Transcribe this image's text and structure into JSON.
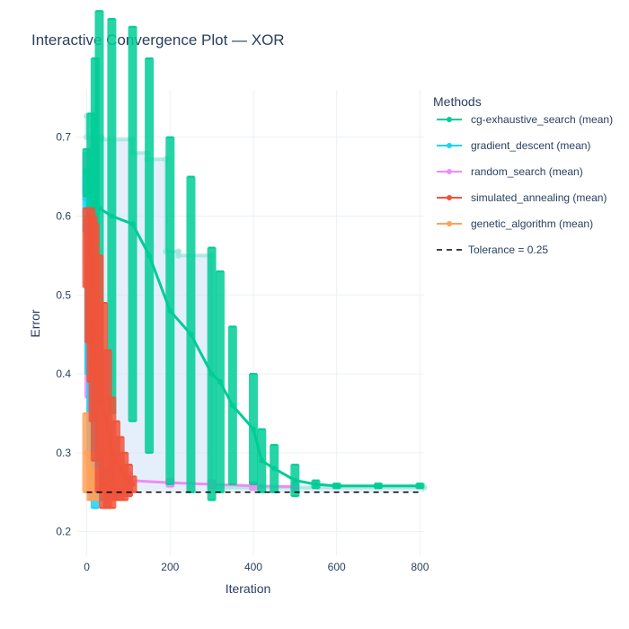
{
  "chart_data": {
    "type": "line",
    "title": "Interactive Convergence Plot — XOR",
    "xlabel": "Iteration",
    "ylabel": "Error",
    "xlim": [
      -25,
      810
    ],
    "ylim": [
      0.17,
      0.76
    ],
    "xticks": [
      0,
      200,
      400,
      600,
      800
    ],
    "yticks": [
      0.2,
      0.3,
      0.4,
      0.5,
      0.6,
      0.7
    ],
    "grid": true,
    "legend_title": "Methods",
    "legend_position": "right",
    "tolerance": {
      "label": "Tolerance = 0.25",
      "value": 0.25,
      "color": "#000000"
    },
    "series": [
      {
        "name": "cg-exhaustive_search (mean)",
        "color": "#00cc96",
        "x": [
          0,
          10,
          20,
          30,
          60,
          110,
          150,
          200,
          250,
          300,
          320,
          350,
          400,
          420,
          450,
          500,
          550,
          600,
          700,
          800
        ],
        "y": [
          0.655,
          0.63,
          0.62,
          0.61,
          0.6,
          0.59,
          0.55,
          0.48,
          0.45,
          0.4,
          0.39,
          0.36,
          0.33,
          0.29,
          0.28,
          0.265,
          0.26,
          0.258,
          0.258,
          0.258
        ],
        "err": [
          0.03,
          0.1,
          0.18,
          0.25,
          0.25,
          0.25,
          0.25,
          0.22,
          0.2,
          0.16,
          0.14,
          0.1,
          0.07,
          0.04,
          0.03,
          0.02,
          0.005,
          0.003,
          0.003,
          0.003
        ]
      },
      {
        "name": "gradient_descent (mean)",
        "color": "#19d3f3",
        "x": [
          0,
          5,
          10,
          15,
          20,
          30,
          40,
          60
        ],
        "y": [
          0.62,
          0.5,
          0.4,
          0.33,
          0.29,
          0.27,
          0.26,
          0.255
        ],
        "err": [
          0.04,
          0.1,
          0.12,
          0.09,
          0.06,
          0.03,
          0.02,
          0.01
        ]
      },
      {
        "name": "random_search (mean)",
        "color": "#ef8cf4",
        "x": [
          0,
          5,
          10,
          20,
          30,
          60,
          100,
          200,
          300,
          400,
          500
        ],
        "y": [
          0.65,
          0.45,
          0.35,
          0.3,
          0.28,
          0.27,
          0.265,
          0.262,
          0.26,
          0.258,
          0.257
        ],
        "err": [
          0.03,
          0.08,
          0.07,
          0.05,
          0.03,
          0.02,
          0.01,
          0.005,
          0.005,
          0.005,
          0.005
        ]
      },
      {
        "name": "simulated_annealing (mean)",
        "color": "#ef553b",
        "x": [
          0,
          5,
          10,
          15,
          20,
          30,
          40,
          50,
          60,
          70,
          80,
          90,
          100,
          110
        ],
        "y": [
          0.56,
          0.52,
          0.5,
          0.47,
          0.44,
          0.4,
          0.36,
          0.33,
          0.3,
          0.29,
          0.28,
          0.27,
          0.265,
          0.26
        ],
        "err": [
          0.05,
          0.08,
          0.11,
          0.13,
          0.15,
          0.15,
          0.13,
          0.1,
          0.07,
          0.05,
          0.04,
          0.03,
          0.02,
          0.01
        ]
      },
      {
        "name": "genetic_algorithm (mean)",
        "color": "#ffa15a",
        "x": [
          0,
          10,
          20,
          40,
          60,
          80,
          100
        ],
        "y": [
          0.3,
          0.27,
          0.26,
          0.255,
          0.252,
          0.25,
          0.25
        ],
        "err": [
          0.05,
          0.03,
          0.02,
          0.01,
          0.01,
          0.005,
          0.005
        ]
      }
    ],
    "best_run": {
      "color": "#a0e6dc",
      "band_color": "#cfe2f7",
      "x": [
        0,
        0,
        35,
        35,
        110,
        110,
        145,
        145,
        190,
        190,
        220,
        220,
        300,
        300,
        810
      ],
      "y": [
        0.727,
        0.7,
        0.7,
        0.697,
        0.697,
        0.68,
        0.68,
        0.672,
        0.672,
        0.555,
        0.555,
        0.55,
        0.55,
        0.256,
        0.256
      ]
    }
  }
}
